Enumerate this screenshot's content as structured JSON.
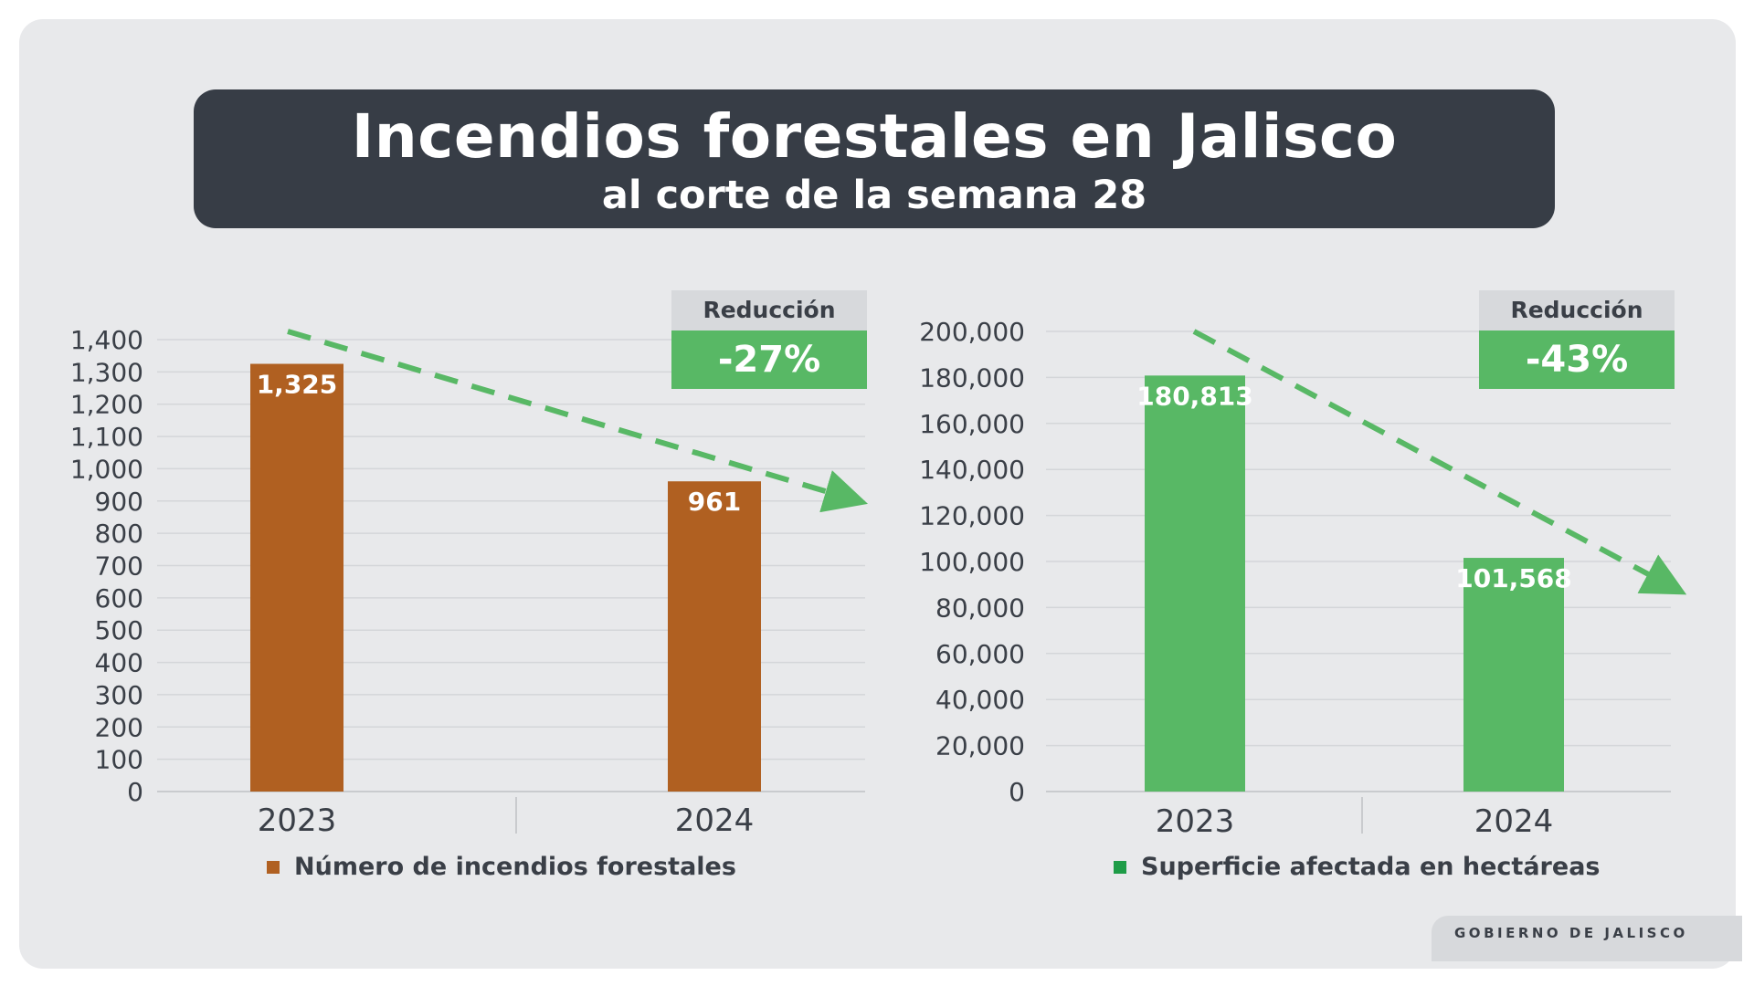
{
  "header": {
    "title": "Incendios forestales en Jalisco",
    "subtitle": "al corte de la semana 28"
  },
  "colors": {
    "background": "#e8e9eb",
    "title_box": "#373d46",
    "orange": "#b06021",
    "green": "#58b865",
    "legend_green": "#1e9c47",
    "trend_arrow": "#58b865"
  },
  "chart_data": [
    {
      "type": "bar",
      "categories": [
        "2023",
        "2024"
      ],
      "values": [
        1325,
        961
      ],
      "value_labels": [
        "1,325",
        "961"
      ],
      "ylim": [
        0,
        1400
      ],
      "yticks": [
        0,
        100,
        200,
        300,
        400,
        500,
        600,
        700,
        800,
        900,
        1000,
        1100,
        1200,
        1300,
        1400
      ],
      "ytick_labels": [
        "0",
        "100",
        "200",
        "300",
        "400",
        "500",
        "600",
        "700",
        "800",
        "900",
        "1,000",
        "1,100",
        "1,200",
        "1,300",
        "1,400"
      ],
      "legend": "Número de incendios forestales",
      "grid": true,
      "badge_label": "Reducción",
      "badge_value": "-27%"
    },
    {
      "type": "bar",
      "categories": [
        "2023",
        "2024"
      ],
      "values": [
        180813,
        101568
      ],
      "value_labels": [
        "180,813",
        "101,568"
      ],
      "ylim": [
        0,
        200000
      ],
      "yticks": [
        0,
        20000,
        40000,
        60000,
        80000,
        100000,
        120000,
        140000,
        160000,
        180000,
        200000
      ],
      "ytick_labels": [
        "0",
        "20,000",
        "40,000",
        "60,000",
        "80,000",
        "100,000",
        "120,000",
        "140,000",
        "160,000",
        "180,000",
        "200,000"
      ],
      "legend": "Superficie afectada en hectáreas",
      "grid": true,
      "badge_label": "Reducción",
      "badge_value": "-43%"
    }
  ],
  "footer": {
    "brand": "GOBIERNO DE JALISCO"
  }
}
